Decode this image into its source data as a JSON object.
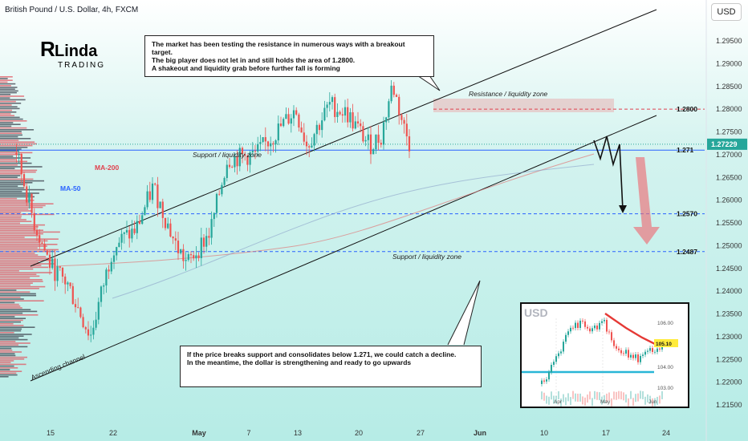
{
  "header": {
    "title": "British Pound / U.S. Dollar, 4h, FXCM"
  },
  "currency_button": "USD",
  "logo": {
    "brand": "Linda",
    "sub": "TRADING"
  },
  "notes": {
    "top": "The market has been testing the resistance in numerous ways with a breakout target.\nThe big player does not let in and still holds the area of 1.2800.\nA shakeout and liquidity grab before further fall is forming",
    "bottom": "If the price breaks support and consolidates below 1.271, we could catch a decline.\nIn the meantime, the dollar is strengthening and ready to go upwards"
  },
  "colors": {
    "up": "#26a69a",
    "down": "#ef5350",
    "level_red": "#e0424e",
    "level_blue": "#2962ff",
    "price_tag": "#26a69a"
  },
  "chart_data": [
    {
      "type": "candlestick",
      "title": "British Pound / U.S. Dollar, 4h, FXCM",
      "x_ticks": [
        "15",
        "22",
        "May",
        "7",
        "13",
        "20",
        "27",
        "Jun",
        "10",
        "17",
        "24"
      ],
      "y_ticks": [
        1.295,
        1.29,
        1.285,
        1.28,
        1.275,
        1.27,
        1.265,
        1.26,
        1.255,
        1.25,
        1.245,
        1.24,
        1.235,
        1.23,
        1.225,
        1.22,
        1.215
      ],
      "y_ticks_label": [
        "1.29500",
        "1.29000",
        "1.28500",
        "1.28000",
        "1.27500",
        "1.27000",
        "1.26500",
        "1.26000",
        "1.25500",
        "1.25000",
        "1.24500",
        "1.24000",
        "1.23500",
        "1.23000",
        "1.22500",
        "1.22000",
        "1.21500"
      ],
      "ylim": [
        1.2115,
        1.2975
      ],
      "current_price": 1.27229,
      "current_price_label": "1.27229",
      "levels": [
        {
          "value": 1.28,
          "label": "1.2800",
          "style": "dashed",
          "color": "#e0424e"
        },
        {
          "value": 1.271,
          "label": "1.271",
          "style": "solid",
          "color": "#2962ff"
        },
        {
          "value": 1.257,
          "label": "1.2570",
          "style": "dashed",
          "color": "#2962ff"
        },
        {
          "value": 1.2487,
          "label": "1.2487",
          "style": "dashed",
          "color": "#2962ff"
        }
      ],
      "annotations": [
        "Resistance / liquidity zone",
        "Support / liquidity zone",
        "Support / liquidity zone",
        "Ascending channel",
        "MA-200",
        "MA-50"
      ],
      "key_points": [
        {
          "x": "Apr 9",
          "y": 1.2705
        },
        {
          "x": "Apr 12",
          "y": 1.2555
        },
        {
          "x": "Apr 15",
          "y": 1.2455
        },
        {
          "x": "Apr 18",
          "y": 1.2415
        },
        {
          "x": "Apr 22",
          "y": 1.23
        },
        {
          "x": "Apr 26",
          "y": 1.25
        },
        {
          "x": "Apr 30",
          "y": 1.2535
        },
        {
          "x": "May 3",
          "y": 1.263
        },
        {
          "x": "May 7",
          "y": 1.25
        },
        {
          "x": "May 9",
          "y": 1.246
        },
        {
          "x": "May 13",
          "y": 1.253
        },
        {
          "x": "May 16",
          "y": 1.269
        },
        {
          "x": "May 21",
          "y": 1.27
        },
        {
          "x": "May 24",
          "y": 1.274
        },
        {
          "x": "May 28",
          "y": 1.28
        },
        {
          "x": "May 30",
          "y": 1.272
        },
        {
          "x": "Jun 3",
          "y": 1.281
        },
        {
          "x": "Jun 6",
          "y": 1.279
        },
        {
          "x": "Jun 10",
          "y": 1.272
        },
        {
          "x": "Jun 12",
          "y": 1.274
        },
        {
          "x": "Jun 14",
          "y": 1.2855
        },
        {
          "x": "Jun 16",
          "y": 1.276
        },
        {
          "x": "Jun 17",
          "y": 1.2723
        }
      ]
    },
    {
      "type": "candlestick",
      "title": "USD",
      "x_ticks": [
        "Apr",
        "May",
        "Jun"
      ],
      "y_ticks": [
        "106.00",
        "105.10",
        "104.00",
        "103.00"
      ],
      "price_tag": "105.10"
    }
  ]
}
